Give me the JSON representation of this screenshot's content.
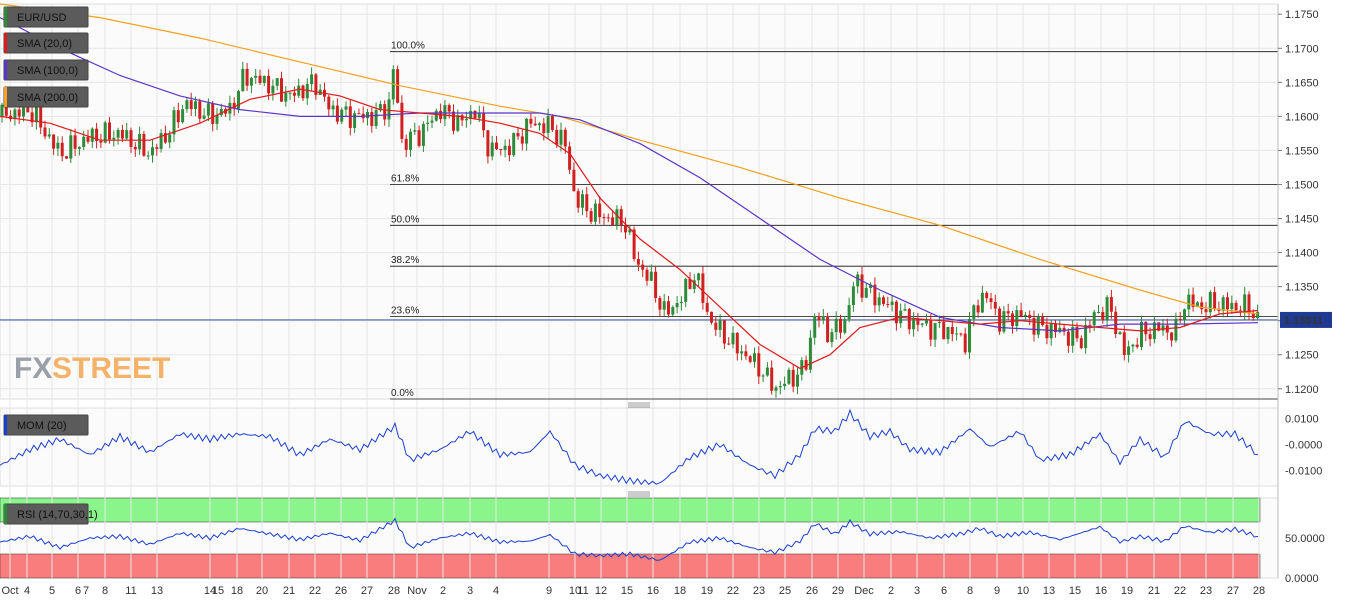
{
  "chart_data": [
    {
      "type": "candlestick",
      "symbol_label": "EUR/USD",
      "indicators": [
        {
          "name": "SMA (20,0)",
          "color": "#e01a1a"
        },
        {
          "name": "SMA (100,0)",
          "color": "#5a35c8"
        },
        {
          "name": "SMA (200,0)",
          "color": "#f5a020"
        }
      ],
      "ylim": [
        1.1185,
        1.1765
      ],
      "y_ticks": [
        "1.1750",
        "1.1700",
        "1.1650",
        "1.1600",
        "1.1550",
        "1.1500",
        "1.1450",
        "1.1400",
        "1.1350",
        "1.1300",
        "1.1250",
        "1.1200"
      ],
      "current_price": "1.13011",
      "fib_levels": [
        {
          "label": "100.0%",
          "value": 1.1695
        },
        {
          "label": "61.8%",
          "value": 1.15
        },
        {
          "label": "50.0%",
          "value": 1.144
        },
        {
          "label": "38.2%",
          "value": 1.138
        },
        {
          "label": "23.6%",
          "value": 1.1306
        },
        {
          "label": "0.0%",
          "value": 1.1185
        }
      ],
      "close_path": [
        [
          0,
          1.16
        ],
        [
          30,
          1.161
        ],
        [
          60,
          1.1545
        ],
        [
          90,
          1.157
        ],
        [
          120,
          1.1575
        ],
        [
          150,
          1.1545
        ],
        [
          170,
          1.158
        ],
        [
          185,
          1.162
        ],
        [
          210,
          1.16
        ],
        [
          230,
          1.161
        ],
        [
          245,
          1.166
        ],
        [
          265,
          1.165
        ],
        [
          290,
          1.163
        ],
        [
          315,
          1.165
        ],
        [
          330,
          1.161
        ],
        [
          350,
          1.16
        ],
        [
          375,
          1.16
        ],
        [
          390,
          1.162
        ],
        [
          395,
          1.169
        ],
        [
          400,
          1.156
        ],
        [
          420,
          1.1575
        ],
        [
          440,
          1.161
        ],
        [
          460,
          1.159
        ],
        [
          475,
          1.161
        ],
        [
          490,
          1.155
        ],
        [
          510,
          1.1555
        ],
        [
          530,
          1.159
        ],
        [
          550,
          1.1585
        ],
        [
          565,
          1.156
        ],
        [
          575,
          1.148
        ],
        [
          590,
          1.146
        ],
        [
          610,
          1.145
        ],
        [
          625,
          1.1445
        ],
        [
          635,
          1.139
        ],
        [
          650,
          1.136
        ],
        [
          665,
          1.131
        ],
        [
          680,
          1.133
        ],
        [
          695,
          1.137
        ],
        [
          710,
          1.13
        ],
        [
          730,
          1.127
        ],
        [
          745,
          1.125
        ],
        [
          760,
          1.123
        ],
        [
          775,
          1.12
        ],
        [
          790,
          1.1215
        ],
        [
          805,
          1.123
        ],
        [
          815,
          1.131
        ],
        [
          830,
          1.128
        ],
        [
          845,
          1.13
        ],
        [
          855,
          1.136
        ],
        [
          870,
          1.134
        ],
        [
          890,
          1.132
        ],
        [
          910,
          1.13
        ],
        [
          930,
          1.129
        ],
        [
          950,
          1.1285
        ],
        [
          965,
          1.127
        ],
        [
          975,
          1.132
        ],
        [
          985,
          1.134
        ],
        [
          1000,
          1.13
        ],
        [
          1020,
          1.131
        ],
        [
          1040,
          1.129
        ],
        [
          1060,
          1.1285
        ],
        [
          1080,
          1.127
        ],
        [
          1095,
          1.131
        ],
        [
          1110,
          1.132
        ],
        [
          1125,
          1.125
        ],
        [
          1140,
          1.128
        ],
        [
          1160,
          1.129
        ],
        [
          1175,
          1.128
        ],
        [
          1185,
          1.133
        ],
        [
          1200,
          1.132
        ],
        [
          1215,
          1.1325
        ],
        [
          1235,
          1.132
        ],
        [
          1250,
          1.132
        ],
        [
          1258,
          1.13
        ]
      ],
      "sma20": [
        [
          0,
          1.16
        ],
        [
          50,
          1.159
        ],
        [
          100,
          1.1565
        ],
        [
          150,
          1.1565
        ],
        [
          200,
          1.159
        ],
        [
          250,
          1.1625
        ],
        [
          300,
          1.164
        ],
        [
          340,
          1.163
        ],
        [
          380,
          1.161
        ],
        [
          420,
          1.1605
        ],
        [
          460,
          1.16
        ],
        [
          500,
          1.159
        ],
        [
          540,
          1.1575
        ],
        [
          570,
          1.1545
        ],
        [
          600,
          1.148
        ],
        [
          640,
          1.142
        ],
        [
          680,
          1.1375
        ],
        [
          720,
          1.132
        ],
        [
          760,
          1.1265
        ],
        [
          800,
          1.123
        ],
        [
          830,
          1.125
        ],
        [
          860,
          1.129
        ],
        [
          900,
          1.1305
        ],
        [
          940,
          1.13
        ],
        [
          980,
          1.1295
        ],
        [
          1020,
          1.13
        ],
        [
          1060,
          1.1295
        ],
        [
          1100,
          1.129
        ],
        [
          1140,
          1.1285
        ],
        [
          1180,
          1.129
        ],
        [
          1220,
          1.131
        ],
        [
          1258,
          1.1315
        ]
      ],
      "sma100": [
        [
          0,
          1.1745
        ],
        [
          60,
          1.17
        ],
        [
          120,
          1.166
        ],
        [
          180,
          1.163
        ],
        [
          240,
          1.161
        ],
        [
          300,
          1.16
        ],
        [
          360,
          1.16
        ],
        [
          420,
          1.1605
        ],
        [
          480,
          1.1605
        ],
        [
          540,
          1.1605
        ],
        [
          580,
          1.1595
        ],
        [
          640,
          1.156
        ],
        [
          700,
          1.151
        ],
        [
          760,
          1.145
        ],
        [
          820,
          1.139
        ],
        [
          880,
          1.1345
        ],
        [
          940,
          1.1305
        ],
        [
          1000,
          1.129
        ],
        [
          1060,
          1.1285
        ],
        [
          1120,
          1.1295
        ],
        [
          1180,
          1.1295
        ],
        [
          1258,
          1.1297
        ]
      ],
      "sma200": [
        [
          0,
          1.1765
        ],
        [
          100,
          1.1745
        ],
        [
          200,
          1.1715
        ],
        [
          300,
          1.168
        ],
        [
          400,
          1.1645
        ],
        [
          500,
          1.1615
        ],
        [
          560,
          1.16
        ],
        [
          640,
          1.1565
        ],
        [
          740,
          1.1525
        ],
        [
          840,
          1.148
        ],
        [
          940,
          1.144
        ],
        [
          1040,
          1.139
        ],
        [
          1140,
          1.1345
        ],
        [
          1200,
          1.132
        ],
        [
          1258,
          1.131
        ]
      ],
      "x_labels": [
        {
          "label": "Oct",
          "x": 10
        },
        {
          "label": "4",
          "x": 27
        },
        {
          "label": "5",
          "x": 52
        },
        {
          "label": "6",
          "x": 78
        },
        {
          "label": "7",
          "x": 78
        },
        {
          "label": "8",
          "x": 105
        },
        {
          "label": "11",
          "x": 131
        },
        {
          "label": "13",
          "x": 157
        },
        {
          "label": "14",
          "x": 210
        },
        {
          "label": "15",
          "x": 210
        },
        {
          "label": "18",
          "x": 237
        },
        {
          "label": "20",
          "x": 262
        },
        {
          "label": "21",
          "x": 289
        },
        {
          "label": "22",
          "x": 315
        },
        {
          "label": "26",
          "x": 341
        },
        {
          "label": "27",
          "x": 367
        },
        {
          "label": "28",
          "x": 394
        },
        {
          "label": "Nov",
          "x": 417
        },
        {
          "label": "2",
          "x": 443
        },
        {
          "label": "3",
          "x": 470
        },
        {
          "label": "4",
          "x": 496
        },
        {
          "label": "9",
          "x": 549
        },
        {
          "label": "10",
          "x": 575
        },
        {
          "label": "11",
          "x": 575
        },
        {
          "label": "12",
          "x": 601
        },
        {
          "label": "15",
          "x": 627
        },
        {
          "label": "16",
          "x": 653
        },
        {
          "label": "18",
          "x": 680
        },
        {
          "label": "19",
          "x": 707
        },
        {
          "label": "22",
          "x": 733
        },
        {
          "label": "23",
          "x": 759
        },
        {
          "label": "25",
          "x": 785
        },
        {
          "label": "26",
          "x": 812
        },
        {
          "label": "29",
          "x": 838
        },
        {
          "label": "Dec",
          "x": 864
        },
        {
          "label": "2",
          "x": 891
        },
        {
          "label": "3",
          "x": 917
        },
        {
          "label": "6",
          "x": 944
        },
        {
          "label": "8",
          "x": 970
        },
        {
          "label": "9",
          "x": 997
        },
        {
          "label": "10",
          "x": 1023
        },
        {
          "label": "13",
          "x": 1049
        },
        {
          "label": "15",
          "x": 1075
        },
        {
          "label": "16",
          "x": 1101
        },
        {
          "label": "19",
          "x": 1127
        },
        {
          "label": "21",
          "x": 1154
        },
        {
          "label": "22",
          "x": 1180
        },
        {
          "label": "23",
          "x": 1206
        },
        {
          "label": "27",
          "x": 1233
        },
        {
          "label": "28",
          "x": 1259
        }
      ]
    },
    {
      "type": "line",
      "indicator": "MOM (20)",
      "ylim": [
        -0.016,
        0.014
      ],
      "y_ticks": [
        "0.0100",
        "-0.0000",
        "-0.0100"
      ],
      "series": [
        [
          0,
          -0.008
        ],
        [
          30,
          -0.002
        ],
        [
          60,
          0.002
        ],
        [
          90,
          -0.004
        ],
        [
          120,
          0.003
        ],
        [
          150,
          -0.003
        ],
        [
          180,
          0.004
        ],
        [
          210,
          0.002
        ],
        [
          240,
          0.004
        ],
        [
          270,
          0.003
        ],
        [
          300,
          -0.004
        ],
        [
          330,
          0.002
        ],
        [
          360,
          -0.002
        ],
        [
          395,
          0.007
        ],
        [
          410,
          -0.006
        ],
        [
          440,
          -0.002
        ],
        [
          470,
          0.005
        ],
        [
          500,
          -0.004
        ],
        [
          530,
          -0.003
        ],
        [
          550,
          0.005
        ],
        [
          575,
          -0.008
        ],
        [
          600,
          -0.012
        ],
        [
          630,
          -0.014
        ],
        [
          660,
          -0.015
        ],
        [
          690,
          -0.005
        ],
        [
          720,
          0.0
        ],
        [
          750,
          -0.008
        ],
        [
          775,
          -0.012
        ],
        [
          800,
          -0.004
        ],
        [
          815,
          0.006
        ],
        [
          835,
          0.005
        ],
        [
          850,
          0.012
        ],
        [
          870,
          0.003
        ],
        [
          890,
          0.005
        ],
        [
          910,
          -0.002
        ],
        [
          940,
          -0.003
        ],
        [
          970,
          0.006
        ],
        [
          990,
          -0.001
        ],
        [
          1020,
          0.005
        ],
        [
          1040,
          -0.006
        ],
        [
          1070,
          -0.004
        ],
        [
          1100,
          0.004
        ],
        [
          1120,
          -0.007
        ],
        [
          1140,
          0.002
        ],
        [
          1165,
          -0.005
        ],
        [
          1185,
          0.009
        ],
        [
          1210,
          0.004
        ],
        [
          1235,
          0.004
        ],
        [
          1258,
          -0.004
        ]
      ]
    },
    {
      "type": "line",
      "indicator": "RSI (14,70,30,1)",
      "ylim": [
        0,
        100
      ],
      "y_ticks": [
        "50.0000",
        "0.0000"
      ],
      "overbought": 70,
      "oversold": 30,
      "series": [
        [
          0,
          45
        ],
        [
          30,
          52
        ],
        [
          60,
          38
        ],
        [
          90,
          50
        ],
        [
          120,
          52
        ],
        [
          150,
          42
        ],
        [
          180,
          56
        ],
        [
          210,
          50
        ],
        [
          240,
          62
        ],
        [
          270,
          55
        ],
        [
          300,
          48
        ],
        [
          330,
          56
        ],
        [
          360,
          47
        ],
        [
          395,
          72
        ],
        [
          410,
          38
        ],
        [
          440,
          50
        ],
        [
          470,
          56
        ],
        [
          500,
          45
        ],
        [
          530,
          46
        ],
        [
          550,
          54
        ],
        [
          575,
          30
        ],
        [
          600,
          28
        ],
        [
          630,
          30
        ],
        [
          660,
          22
        ],
        [
          690,
          45
        ],
        [
          720,
          50
        ],
        [
          750,
          38
        ],
        [
          775,
          32
        ],
        [
          800,
          46
        ],
        [
          815,
          68
        ],
        [
          835,
          55
        ],
        [
          850,
          70
        ],
        [
          870,
          55
        ],
        [
          900,
          58
        ],
        [
          930,
          50
        ],
        [
          960,
          55
        ],
        [
          980,
          62
        ],
        [
          1000,
          52
        ],
        [
          1030,
          57
        ],
        [
          1060,
          48
        ],
        [
          1100,
          64
        ],
        [
          1120,
          45
        ],
        [
          1140,
          52
        ],
        [
          1165,
          46
        ],
        [
          1185,
          65
        ],
        [
          1210,
          57
        ],
        [
          1235,
          61
        ],
        [
          1258,
          52
        ]
      ]
    }
  ],
  "watermark": {
    "part1": "FX",
    "part2": "STREET"
  },
  "colors": {
    "bull_candle": "#2e8b3a",
    "bear_candle": "#d02020",
    "grid": "#e6e6e6",
    "overbought_zone": "#8af58a",
    "oversold_zone": "#fa7d7d",
    "mom_line": "#1a3fd0",
    "rsi_line": "#1a3fd0",
    "price_badge": "#1f3a93",
    "watermark_dark": "#9aa0a8",
    "watermark_orange": "#f5b26b"
  }
}
